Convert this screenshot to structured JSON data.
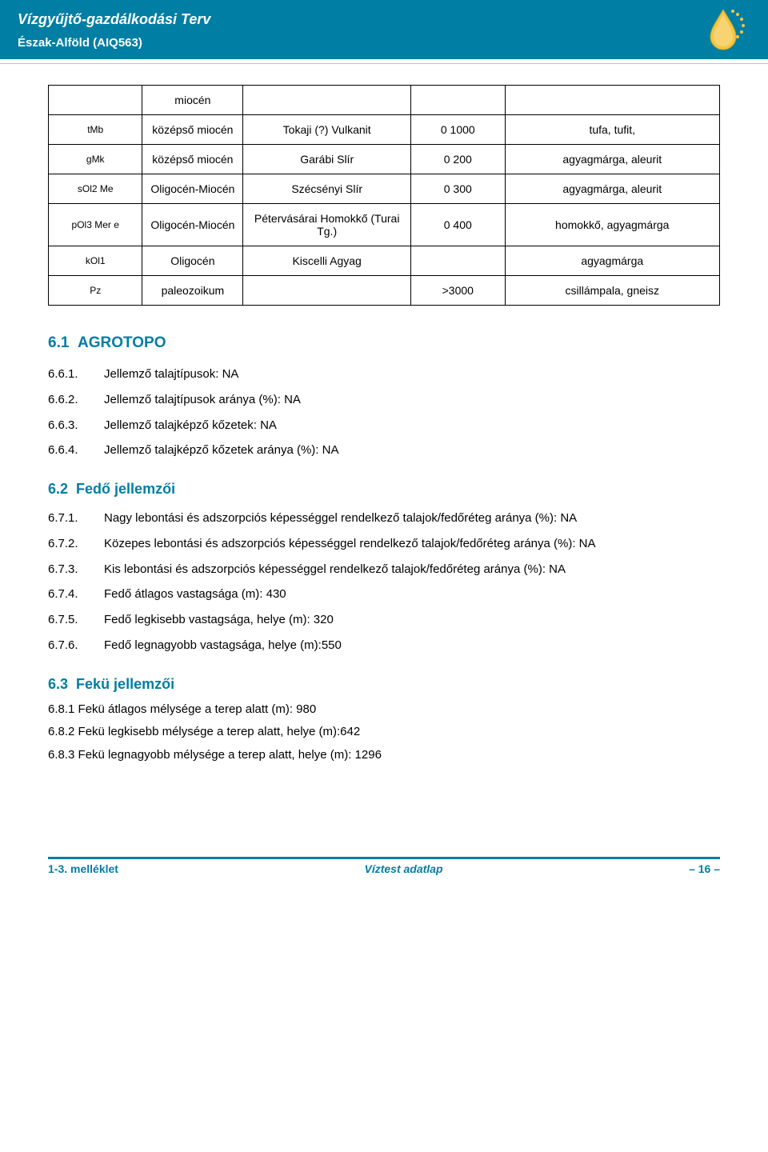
{
  "header": {
    "title": "Vízgyűjtő-gazdálkodási Terv",
    "subtitle": "Észak-Alföld (AIQ563)",
    "bg_color": "#007ea3",
    "text_color": "#ffffff"
  },
  "geo_table": {
    "rows": [
      {
        "c1": "",
        "c2": "miocén",
        "c3": "",
        "c4": "",
        "c5": ""
      },
      {
        "c1": "tMb",
        "c2": "középső miocén",
        "c3": "Tokaji (?) Vulkanit",
        "c4": "0 1000",
        "c5": "tufa, tufit,"
      },
      {
        "c1": "gMk",
        "c2": "középső miocén",
        "c3": "Garábi Slír",
        "c4": "0 200",
        "c5": "agyagmárga, aleurit"
      },
      {
        "c1": "sOl2 Me",
        "c2": "Oligocén-Miocén",
        "c3": "Szécsényi Slír",
        "c4": "0 300",
        "c5": "agyagmárga, aleurit"
      },
      {
        "c1": "pOl3 Mer e",
        "c2": "Oligocén-Miocén",
        "c3": "Pétervásárai Homokkő (Turai Tg.)",
        "c4": "0 400",
        "c5": "homokkő, agyagmárga"
      },
      {
        "c1": "kOl1",
        "c2": "Oligocén",
        "c3": "Kiscelli Agyag",
        "c4": "",
        "c5": "agyagmárga"
      },
      {
        "c1": "Pz",
        "c2": "paleozoikum",
        "c3": "",
        "c4": ">3000",
        "c5": "csillámpala, gneisz"
      }
    ]
  },
  "section61": {
    "num": "6.1",
    "title": "AGROTOPO"
  },
  "list61": [
    {
      "num": "6.6.1.",
      "txt": "Jellemző talajtípusok: NA"
    },
    {
      "num": "6.6.2.",
      "txt": "Jellemző talajtípusok aránya (%): NA"
    },
    {
      "num": "6.6.3.",
      "txt": "Jellemző talajképző kőzetek: NA"
    },
    {
      "num": "6.6.4.",
      "txt": "Jellemző talajképző kőzetek aránya (%): NA"
    }
  ],
  "section62": {
    "num": "6.2",
    "title": "Fedő jellemzői"
  },
  "list62": [
    {
      "num": "6.7.1.",
      "txt": "Nagy lebontási és adszorpciós képességgel rendelkező talajok/fedőréteg aránya (%): NA"
    },
    {
      "num": "6.7.2.",
      "txt": "Közepes lebontási és adszorpciós képességgel rendelkező talajok/fedőréteg aránya (%): NA"
    },
    {
      "num": "6.7.3.",
      "txt": "Kis lebontási és adszorpciós képességgel rendelkező talajok/fedőréteg aránya (%): NA"
    },
    {
      "num": "6.7.4.",
      "txt": "Fedő átlagos vastagsága (m): 430"
    },
    {
      "num": "6.7.5.",
      "txt": "Fedő legkisebb vastagsága, helye (m): 320"
    },
    {
      "num": "6.7.6.",
      "txt": "Fedő legnagyobb vastagsága, helye (m):550"
    }
  ],
  "section63": {
    "num": "6.3",
    "title": "Fekü jellemzői"
  },
  "paras63": [
    "6.8.1 Fekü átlagos mélysége a terep alatt (m): 980",
    "6.8.2 Fekü legkisebb mélysége a terep alatt, helye (m):642",
    "6.8.3 Fekü legnagyobb mélysége a terep alatt, helye (m): 1296"
  ],
  "footer": {
    "left": "1-3. melléklet",
    "center": "Víztest adatlap",
    "right": "– 16 –",
    "accent": "#007ea3"
  }
}
